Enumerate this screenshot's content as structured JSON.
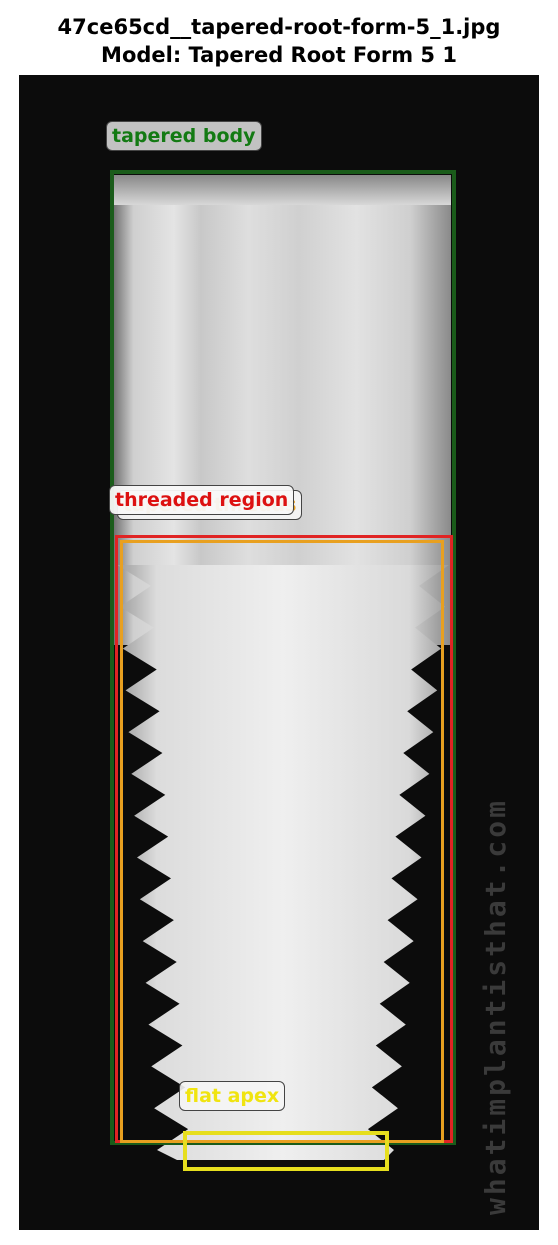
{
  "figure": {
    "title_line1": "47ce65cd__tapered-root-form-5_1.jpg",
    "title_line2": "Model: Tapered Root Form 5 1"
  },
  "image": {
    "watermark": "whatimplantisthat.com"
  },
  "annotations": [
    {
      "label": "tapered body",
      "color": "#1a5c1a"
    },
    {
      "label": "threaded region",
      "color": "#e02424"
    },
    {
      "label": "tapered threads",
      "color": "#e8a020"
    },
    {
      "label": "flat apex",
      "color": "#e6de1e"
    }
  ]
}
